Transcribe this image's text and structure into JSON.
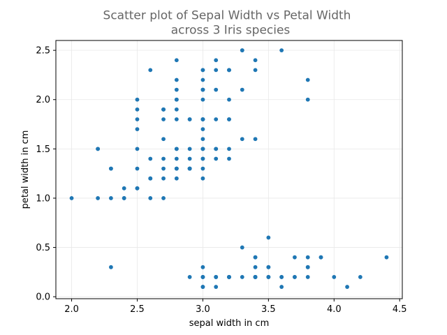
{
  "chart_data": {
    "type": "scatter",
    "title": [
      "Scatter plot of Sepal Width vs Petal Width",
      "across 3 Iris species"
    ],
    "xlabel": "sepal width in cm",
    "ylabel": "petal width in cm",
    "xlim": [
      1.88,
      4.52
    ],
    "ylim": [
      -0.02,
      2.6
    ],
    "xticks": [
      "2.0",
      "2.5",
      "3.0",
      "3.5",
      "4.0",
      "4.5"
    ],
    "yticks": [
      "0.0",
      "0.5",
      "1.0",
      "1.5",
      "2.0",
      "2.5"
    ],
    "grid": true,
    "color": "#1f77b4",
    "series": [
      {
        "x": [
          3.5,
          3.0,
          3.2,
          3.1,
          3.6,
          3.9,
          3.4,
          3.4,
          2.9,
          3.1,
          3.7,
          3.4,
          3.0,
          3.0,
          4.0,
          4.4,
          3.9,
          3.5,
          3.8,
          3.8,
          3.4,
          3.7,
          3.6,
          3.3,
          3.4,
          3.0,
          3.4,
          3.5,
          3.4,
          3.2,
          3.1,
          3.4,
          4.1,
          4.2,
          3.1,
          3.2,
          3.5,
          3.6,
          3.0,
          3.4,
          3.5,
          2.3,
          3.2,
          3.5,
          3.8,
          3.0,
          3.8,
          3.2,
          3.7,
          3.3,
          3.2,
          3.2,
          3.1,
          2.3,
          2.8,
          2.8,
          3.3,
          2.4,
          2.9,
          2.7,
          2.0,
          3.0,
          2.2,
          2.9,
          2.9,
          3.1,
          3.0,
          2.7,
          2.2,
          2.5,
          3.2,
          2.8,
          2.5,
          2.8,
          2.9,
          3.0,
          2.8,
          3.0,
          2.9,
          2.6,
          2.4,
          2.4,
          2.7,
          2.7,
          3.0,
          3.4,
          3.1,
          2.3,
          3.0,
          2.5,
          2.6,
          3.0,
          2.6,
          2.3,
          2.7,
          3.0,
          2.9,
          2.9,
          2.5,
          2.8,
          3.3,
          2.7,
          3.0,
          2.9,
          3.0,
          3.0,
          2.5,
          2.9,
          2.5,
          3.6,
          3.2,
          2.7,
          3.0,
          2.5,
          2.8,
          3.2,
          3.0,
          3.8,
          2.6,
          2.2,
          3.2,
          2.8,
          2.8,
          2.7,
          3.3,
          3.2,
          2.8,
          3.0,
          2.8,
          3.0,
          2.8,
          3.8,
          2.8,
          2.8,
          2.6,
          3.0,
          3.4,
          3.1,
          3.0,
          3.1,
          3.1,
          3.1,
          2.7,
          3.2,
          3.3,
          3.0,
          2.5,
          3.0,
          3.4,
          3.0
        ],
        "y": [
          0.2,
          0.2,
          0.2,
          0.2,
          0.2,
          0.4,
          0.3,
          0.2,
          0.2,
          0.1,
          0.2,
          0.2,
          0.1,
          0.1,
          0.2,
          0.4,
          0.4,
          0.3,
          0.3,
          0.3,
          0.2,
          0.4,
          0.2,
          0.5,
          0.2,
          0.2,
          0.4,
          0.2,
          0.2,
          0.2,
          0.2,
          0.4,
          0.1,
          0.2,
          0.2,
          0.2,
          0.2,
          0.1,
          0.2,
          0.2,
          0.3,
          0.3,
          0.2,
          0.6,
          0.4,
          0.3,
          0.2,
          0.2,
          0.2,
          0.2,
          1.4,
          1.5,
          1.5,
          1.3,
          1.5,
          1.3,
          1.6,
          1.0,
          1.3,
          1.4,
          1.0,
          1.5,
          1.0,
          1.4,
          1.3,
          1.4,
          1.5,
          1.0,
          1.5,
          1.1,
          1.8,
          1.3,
          1.5,
          1.2,
          1.3,
          1.4,
          1.4,
          1.7,
          1.5,
          1.0,
          1.1,
          1.0,
          1.2,
          1.6,
          1.5,
          1.6,
          1.5,
          1.3,
          1.3,
          1.3,
          1.2,
          1.4,
          1.2,
          1.0,
          1.3,
          1.2,
          1.3,
          1.3,
          1.1,
          1.3,
          2.5,
          1.9,
          2.1,
          1.8,
          2.2,
          2.1,
          1.7,
          1.8,
          1.8,
          2.5,
          2.0,
          1.9,
          2.1,
          2.0,
          2.4,
          2.3,
          1.8,
          2.2,
          2.3,
          1.5,
          2.3,
          2.0,
          2.0,
          1.8,
          2.1,
          1.8,
          1.8,
          1.8,
          2.1,
          1.6,
          1.9,
          2.0,
          2.2,
          1.5,
          1.4,
          2.3,
          2.4,
          1.8,
          1.8,
          2.1,
          2.4,
          2.3,
          1.9,
          2.3,
          2.5,
          2.3,
          1.9,
          2.0,
          2.3,
          1.8
        ]
      }
    ]
  }
}
